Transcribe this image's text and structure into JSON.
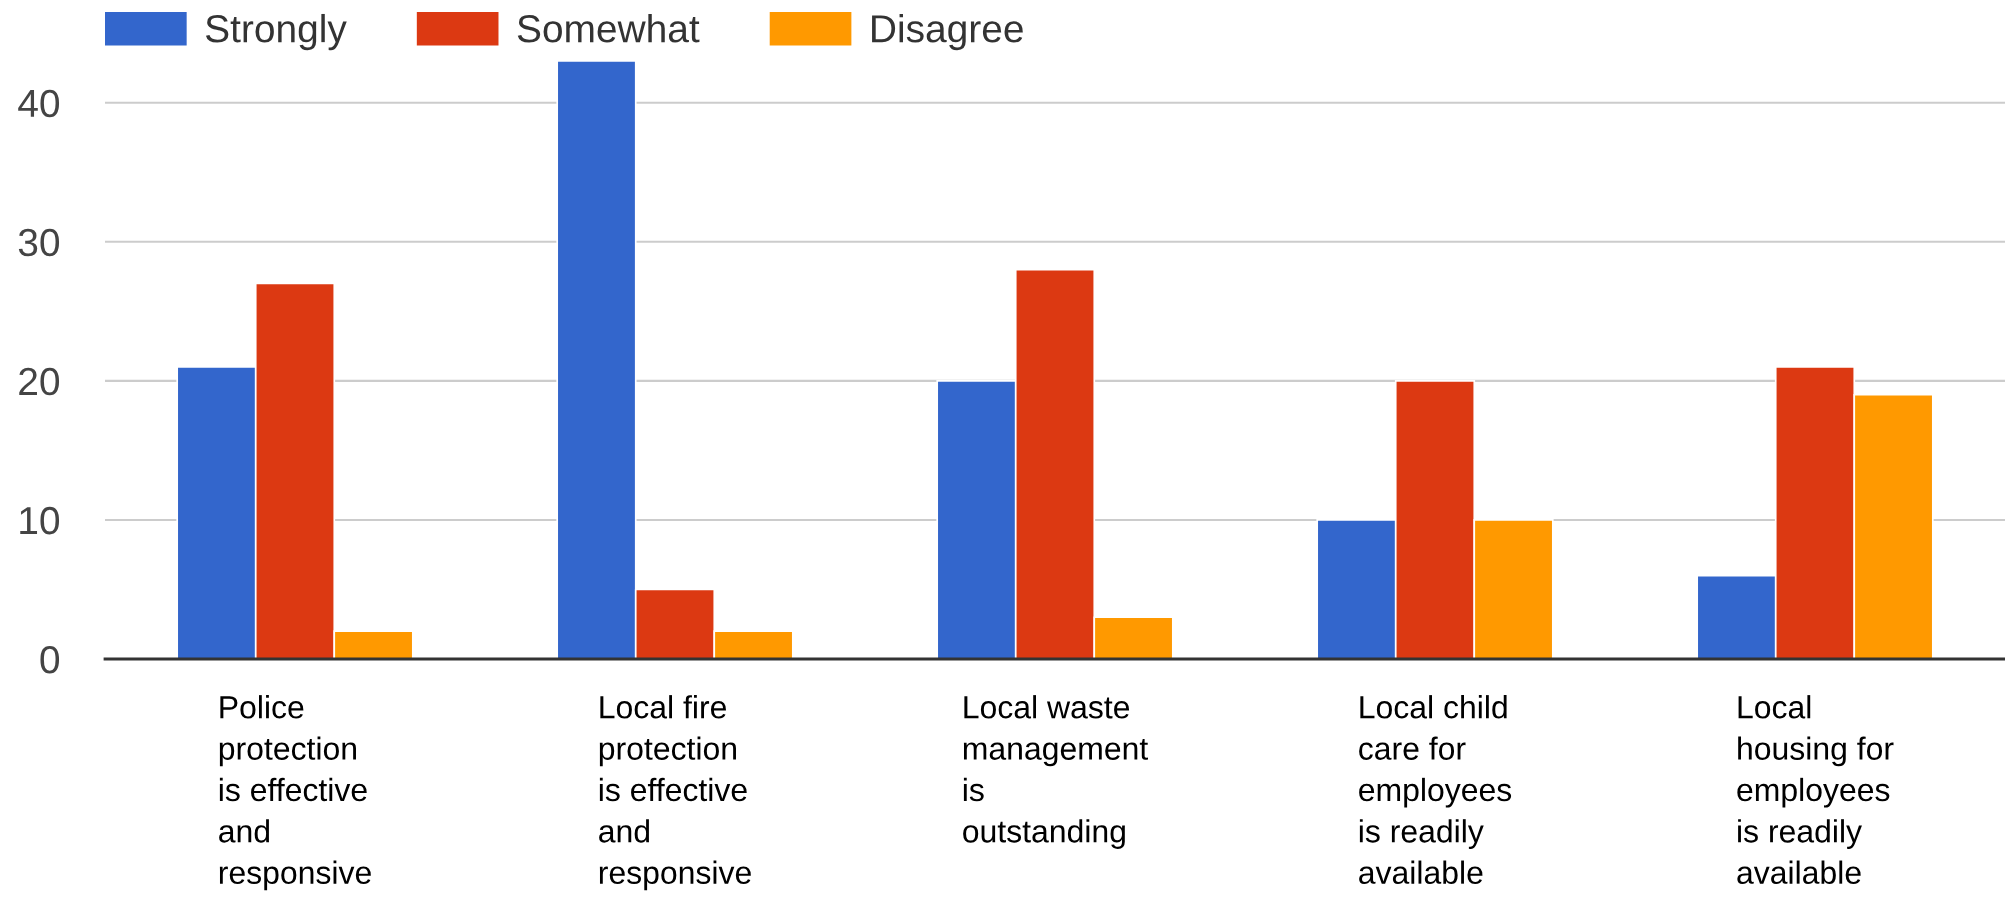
{
  "chart_data": {
    "type": "bar",
    "categories": [
      "Police\nprotection\nis effective\nand\nresponsive",
      "Local fire\nprotection\nis effective\nand\nresponsive",
      "Local waste\nmanagement\nis\noutstanding",
      "Local child\ncare for\nemployees\nis readily\navailable",
      "Local\nhousing for\nemployees\nis readily\navailable"
    ],
    "series": [
      {
        "name": "Strongly",
        "color": "#3366cc",
        "values": [
          21,
          43,
          20,
          10,
          6
        ]
      },
      {
        "name": "Somewhat",
        "color": "#dc3912",
        "values": [
          27,
          5,
          28,
          20,
          21
        ]
      },
      {
        "name": "Disagree",
        "color": "#ff9900",
        "values": [
          2,
          2,
          3,
          10,
          19
        ]
      }
    ],
    "ylim": [
      0,
      43
    ],
    "yticks": [
      0,
      10,
      20,
      30,
      40
    ],
    "grid": "y",
    "legend": "top left"
  }
}
